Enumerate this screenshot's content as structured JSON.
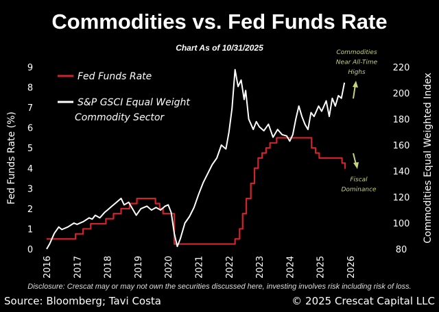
{
  "chart_data": {
    "type": "line",
    "title": "Commodities vs. Fed Funds Rate",
    "subtitle": "Chart As of 10/31/2025",
    "xlabel": "",
    "ylabel_left": "Fed Funds Rate (%)",
    "ylabel_right": "Commodities Equal Weighted Index",
    "xlim": [
      2016,
      2026
    ],
    "xticks": [
      "2016",
      "2017",
      "2018",
      "2019",
      "2020",
      "2021",
      "2022",
      "2023",
      "2024",
      "2025",
      "2026"
    ],
    "ylim_left": [
      0,
      9
    ],
    "yticks_left": [
      "0",
      "1",
      "2",
      "3",
      "4",
      "5",
      "6",
      "7",
      "8",
      "9"
    ],
    "ylim_right": [
      80,
      220
    ],
    "yticks_right": [
      "80",
      "100",
      "120",
      "140",
      "160",
      "180",
      "200",
      "220"
    ],
    "grid": false,
    "legend_position": "top-left",
    "series": [
      {
        "name": "Fed Funds Rate",
        "axis": "left",
        "color": "#d0232a",
        "step": true,
        "points": [
          [
            2016.0,
            0.5
          ],
          [
            2016.95,
            0.75
          ],
          [
            2017.2,
            1.0
          ],
          [
            2017.45,
            1.25
          ],
          [
            2017.95,
            1.5
          ],
          [
            2018.2,
            1.75
          ],
          [
            2018.45,
            2.0
          ],
          [
            2018.73,
            2.25
          ],
          [
            2018.97,
            2.5
          ],
          [
            2019.58,
            2.25
          ],
          [
            2019.72,
            2.0
          ],
          [
            2019.83,
            1.75
          ],
          [
            2020.2,
            0.25
          ],
          [
            2022.2,
            0.5
          ],
          [
            2022.35,
            1.0
          ],
          [
            2022.45,
            1.75
          ],
          [
            2022.57,
            2.5
          ],
          [
            2022.72,
            3.25
          ],
          [
            2022.84,
            4.0
          ],
          [
            2022.96,
            4.5
          ],
          [
            2023.09,
            4.75
          ],
          [
            2023.22,
            5.0
          ],
          [
            2023.35,
            5.25
          ],
          [
            2023.57,
            5.5
          ],
          [
            2024.72,
            5.0
          ],
          [
            2024.85,
            4.75
          ],
          [
            2024.97,
            4.5
          ],
          [
            2025.72,
            4.25
          ],
          [
            2025.82,
            4.0
          ],
          [
            2025.84,
            4.0
          ]
        ]
      },
      {
        "name": "S&P GSCI Equal Weight Commodity Sector",
        "axis": "right",
        "color": "#ffffff",
        "step": false,
        "points": [
          [
            2016.0,
            80
          ],
          [
            2016.1,
            84
          ],
          [
            2016.25,
            92
          ],
          [
            2016.4,
            97
          ],
          [
            2016.5,
            95
          ],
          [
            2016.7,
            97
          ],
          [
            2016.9,
            100
          ],
          [
            2017.0,
            99
          ],
          [
            2017.2,
            101
          ],
          [
            2017.4,
            104
          ],
          [
            2017.5,
            103
          ],
          [
            2017.6,
            106
          ],
          [
            2017.75,
            104
          ],
          [
            2017.9,
            108
          ],
          [
            2018.0,
            110
          ],
          [
            2018.15,
            113
          ],
          [
            2018.3,
            116
          ],
          [
            2018.45,
            119
          ],
          [
            2018.55,
            114
          ],
          [
            2018.7,
            116
          ],
          [
            2018.85,
            110
          ],
          [
            2018.95,
            106
          ],
          [
            2019.1,
            111
          ],
          [
            2019.3,
            113
          ],
          [
            2019.45,
            110
          ],
          [
            2019.6,
            112
          ],
          [
            2019.75,
            110
          ],
          [
            2019.9,
            113
          ],
          [
            2020.0,
            114
          ],
          [
            2020.1,
            108
          ],
          [
            2020.2,
            92
          ],
          [
            2020.3,
            82
          ],
          [
            2020.4,
            88
          ],
          [
            2020.55,
            100
          ],
          [
            2020.7,
            105
          ],
          [
            2020.85,
            112
          ],
          [
            2021.0,
            122
          ],
          [
            2021.15,
            131
          ],
          [
            2021.3,
            138
          ],
          [
            2021.45,
            145
          ],
          [
            2021.6,
            150
          ],
          [
            2021.75,
            160
          ],
          [
            2021.9,
            157
          ],
          [
            2022.0,
            170
          ],
          [
            2022.1,
            188
          ],
          [
            2022.2,
            218
          ],
          [
            2022.3,
            205
          ],
          [
            2022.4,
            210
          ],
          [
            2022.5,
            195
          ],
          [
            2022.55,
            202
          ],
          [
            2022.65,
            180
          ],
          [
            2022.8,
            172
          ],
          [
            2022.9,
            178
          ],
          [
            2023.0,
            174
          ],
          [
            2023.15,
            171
          ],
          [
            2023.3,
            176
          ],
          [
            2023.45,
            166
          ],
          [
            2023.6,
            172
          ],
          [
            2023.75,
            168
          ],
          [
            2023.9,
            167
          ],
          [
            2024.0,
            163
          ],
          [
            2024.1,
            168
          ],
          [
            2024.2,
            180
          ],
          [
            2024.3,
            190
          ],
          [
            2024.4,
            182
          ],
          [
            2024.5,
            176
          ],
          [
            2024.6,
            172
          ],
          [
            2024.7,
            185
          ],
          [
            2024.8,
            182
          ],
          [
            2024.95,
            190
          ],
          [
            2025.05,
            186
          ],
          [
            2025.2,
            194
          ],
          [
            2025.3,
            182
          ],
          [
            2025.4,
            196
          ],
          [
            2025.5,
            190
          ],
          [
            2025.6,
            198
          ],
          [
            2025.7,
            196
          ],
          [
            2025.8,
            208
          ]
        ]
      }
    ],
    "legend": [
      {
        "label_lines": [
          "Fed Funds Rate"
        ],
        "color": "#d0232a"
      },
      {
        "label_lines": [
          "S&P GSCI Equal Weight",
          "Commodity Sector"
        ],
        "color": "#ffffff"
      }
    ],
    "annotations": [
      {
        "lines": [
          "Commodities",
          "Near All-Time",
          "Highs"
        ],
        "arrow": "up",
        "color": "#c9d27e"
      },
      {
        "lines": [
          "Fiscal",
          "Dominance"
        ],
        "arrow": "down",
        "color": "#c9d27e"
      }
    ]
  },
  "footer": {
    "disclosure": "Disclosure: Crescat may or may not own the securities discussed here, investing involves risk including risk of loss.",
    "source": "Source: Bloomberg; Tavi Costa",
    "copyright": "© 2025 Crescat Capital LLC"
  }
}
